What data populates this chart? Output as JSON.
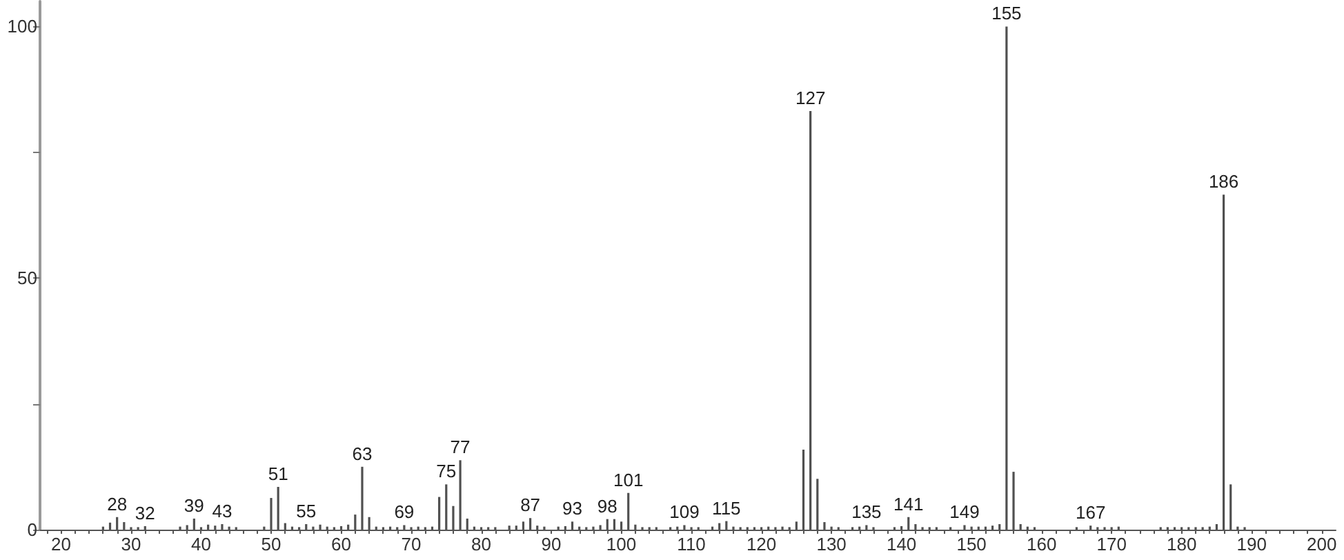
{
  "chart_data": {
    "type": "bar",
    "color": "#505050",
    "x": [
      26,
      27,
      28,
      29,
      30,
      31,
      32,
      37,
      38,
      39,
      40,
      41,
      42,
      43,
      44,
      45,
      49,
      50,
      51,
      52,
      53,
      54,
      55,
      56,
      57,
      58,
      59,
      60,
      61,
      62,
      63,
      64,
      65,
      66,
      67,
      68,
      69,
      70,
      71,
      72,
      73,
      74,
      75,
      76,
      77,
      78,
      79,
      80,
      81,
      82,
      84,
      85,
      86,
      87,
      88,
      89,
      91,
      92,
      93,
      94,
      95,
      96,
      97,
      98,
      99,
      100,
      101,
      102,
      103,
      104,
      105,
      107,
      108,
      109,
      110,
      111,
      113,
      114,
      115,
      116,
      117,
      118,
      119,
      120,
      121,
      122,
      123,
      124,
      125,
      126,
      127,
      128,
      129,
      130,
      131,
      133,
      134,
      135,
      136,
      139,
      140,
      141,
      142,
      143,
      144,
      145,
      147,
      149,
      150,
      151,
      152,
      153,
      154,
      155,
      156,
      157,
      158,
      159,
      165,
      167,
      168,
      169,
      170,
      171,
      177,
      178,
      179,
      180,
      181,
      182,
      183,
      184,
      185,
      186,
      187,
      188,
      189
    ],
    "values": [
      0.6,
      1.4,
      2.5,
      1.5,
      0.5,
      0.5,
      0.7,
      0.6,
      0.9,
      2.2,
      0.5,
      1.0,
      0.8,
      1.1,
      0.6,
      0.5,
      0.6,
      6.3,
      8.5,
      1.3,
      0.6,
      0.5,
      1.1,
      0.6,
      1.0,
      0.6,
      0.5,
      0.7,
      1.0,
      3.0,
      12.5,
      2.5,
      0.6,
      0.5,
      0.6,
      0.5,
      0.9,
      0.5,
      0.6,
      0.5,
      0.6,
      6.5,
      9.0,
      4.7,
      13.8,
      2.2,
      0.6,
      0.5,
      0.5,
      0.5,
      0.8,
      0.8,
      1.6,
      2.3,
      0.8,
      0.6,
      0.6,
      0.7,
      1.6,
      0.6,
      0.5,
      0.6,
      0.9,
      2.1,
      2.1,
      1.6,
      7.3,
      1.0,
      0.5,
      0.5,
      0.5,
      0.5,
      0.6,
      0.9,
      0.5,
      0.5,
      0.6,
      1.3,
      1.7,
      0.6,
      0.5,
      0.5,
      0.5,
      0.5,
      0.6,
      0.5,
      0.6,
      0.5,
      1.6,
      15.9,
      83.2,
      10.1,
      1.5,
      0.6,
      0.5,
      0.5,
      0.6,
      0.9,
      0.5,
      0.5,
      0.7,
      2.5,
      1.1,
      0.5,
      0.5,
      0.5,
      0.5,
      0.9,
      0.6,
      0.6,
      0.6,
      0.8,
      1.1,
      100,
      11.5,
      1.1,
      0.6,
      0.5,
      0.5,
      0.8,
      0.5,
      0.5,
      0.5,
      0.6,
      0.5,
      0.5,
      0.5,
      0.5,
      0.5,
      0.5,
      0.5,
      0.6,
      1.1,
      66.6,
      9.0,
      0.6,
      0.5
    ],
    "xlim": [
      17,
      202
    ],
    "xticks": [
      {
        "value": 18,
        "label": null
      },
      20,
      {
        "value": 22,
        "label": null
      },
      {
        "value": 24,
        "label": null
      },
      {
        "value": 26,
        "label": null
      },
      {
        "value": 28,
        "label": null
      },
      30,
      {
        "value": 32,
        "label": null
      },
      {
        "value": 34,
        "label": null
      },
      {
        "value": 36,
        "label": null
      },
      {
        "value": 38,
        "label": null
      },
      40,
      {
        "value": 42,
        "label": null
      },
      {
        "value": 44,
        "label": null
      },
      {
        "value": 46,
        "label": null
      },
      {
        "value": 48,
        "label": null
      },
      50,
      {
        "value": 52,
        "label": null
      },
      {
        "value": 54,
        "label": null
      },
      {
        "value": 56,
        "label": null
      },
      {
        "value": 58,
        "label": null
      },
      60,
      {
        "value": 62,
        "label": null
      },
      {
        "value": 64,
        "label": null
      },
      {
        "value": 66,
        "label": null
      },
      {
        "value": 68,
        "label": null
      },
      70,
      {
        "value": 72,
        "label": null
      },
      {
        "value": 74,
        "label": null
      },
      {
        "value": 76,
        "label": null
      },
      {
        "value": 78,
        "label": null
      },
      80,
      {
        "value": 82,
        "label": null
      },
      {
        "value": 84,
        "label": null
      },
      {
        "value": 86,
        "label": null
      },
      {
        "value": 88,
        "label": null
      },
      90,
      {
        "value": 92,
        "label": null
      },
      {
        "value": 94,
        "label": null
      },
      {
        "value": 96,
        "label": null
      },
      {
        "value": 98,
        "label": null
      },
      100,
      {
        "value": 102,
        "label": null
      },
      {
        "value": 104,
        "label": null
      },
      {
        "value": 106,
        "label": null
      },
      {
        "value": 108,
        "label": null
      },
      110,
      {
        "value": 112,
        "label": null
      },
      {
        "value": 114,
        "label": null
      },
      {
        "value": 116,
        "label": null
      },
      {
        "value": 118,
        "label": null
      },
      120,
      {
        "value": 122,
        "label": null
      },
      {
        "value": 124,
        "label": null
      },
      {
        "value": 126,
        "label": null
      },
      {
        "value": 128,
        "label": null
      },
      130,
      {
        "value": 132,
        "label": null
      },
      {
        "value": 134,
        "label": null
      },
      {
        "value": 136,
        "label": null
      },
      {
        "value": 138,
        "label": null
      },
      140,
      {
        "value": 142,
        "label": null
      },
      {
        "value": 144,
        "label": null
      },
      {
        "value": 146,
        "label": null
      },
      {
        "value": 148,
        "label": null
      },
      150,
      {
        "value": 152,
        "label": null
      },
      {
        "value": 154,
        "label": null
      },
      {
        "value": 156,
        "label": null
      },
      {
        "value": 158,
        "label": null
      },
      160,
      {
        "value": 162,
        "label": null
      },
      {
        "value": 164,
        "label": null
      },
      {
        "value": 166,
        "label": null
      },
      {
        "value": 168,
        "label": null
      },
      170,
      {
        "value": 172,
        "label": null
      },
      {
        "value": 174,
        "label": null
      },
      {
        "value": 176,
        "label": null
      },
      {
        "value": 178,
        "label": null
      },
      180,
      {
        "value": 182,
        "label": null
      },
      {
        "value": 184,
        "label": null
      },
      {
        "value": 186,
        "label": null
      },
      {
        "value": 188,
        "label": null
      },
      190,
      {
        "value": 192,
        "label": null
      },
      {
        "value": 194,
        "label": null
      },
      {
        "value": 196,
        "label": null
      },
      {
        "value": 198,
        "label": null
      },
      200
    ],
    "ylim": [
      0,
      105
    ],
    "yticks": [
      0,
      {
        "value": 25,
        "label": null
      },
      50,
      {
        "value": 75,
        "label": null
      },
      100
    ],
    "annotations": [
      {
        "text": "28",
        "x": 28,
        "y": 2.5
      },
      {
        "text": "32",
        "x": 32,
        "y": 0.7
      },
      {
        "text": "39",
        "x": 39,
        "y": 2.2
      },
      {
        "text": "43",
        "x": 43,
        "y": 1.1
      },
      {
        "text": "51",
        "x": 51,
        "y": 8.5
      },
      {
        "text": "55",
        "x": 55,
        "y": 1.1
      },
      {
        "text": "63",
        "x": 63,
        "y": 12.5
      },
      {
        "text": "69",
        "x": 69,
        "y": 0.9
      },
      {
        "text": "75",
        "x": 75,
        "y": 9.0
      },
      {
        "text": "77",
        "x": 77,
        "y": 13.8
      },
      {
        "text": "87",
        "x": 87,
        "y": 2.3
      },
      {
        "text": "93",
        "x": 93,
        "y": 1.6
      },
      {
        "text": "98",
        "x": 98,
        "y": 2.1
      },
      {
        "text": "101",
        "x": 101,
        "y": 7.3
      },
      {
        "text": "109",
        "x": 109,
        "y": 0.9
      },
      {
        "text": "115",
        "x": 115,
        "y": 1.7
      },
      {
        "text": "127",
        "x": 127,
        "y": 83.2
      },
      {
        "text": "135",
        "x": 135,
        "y": 0.9
      },
      {
        "text": "141",
        "x": 141,
        "y": 2.5
      },
      {
        "text": "149",
        "x": 149,
        "y": 0.9
      },
      {
        "text": "155",
        "x": 155,
        "y": 100
      },
      {
        "text": "167",
        "x": 167,
        "y": 0.8
      },
      {
        "text": "186",
        "x": 186,
        "y": 66.6
      }
    ]
  }
}
